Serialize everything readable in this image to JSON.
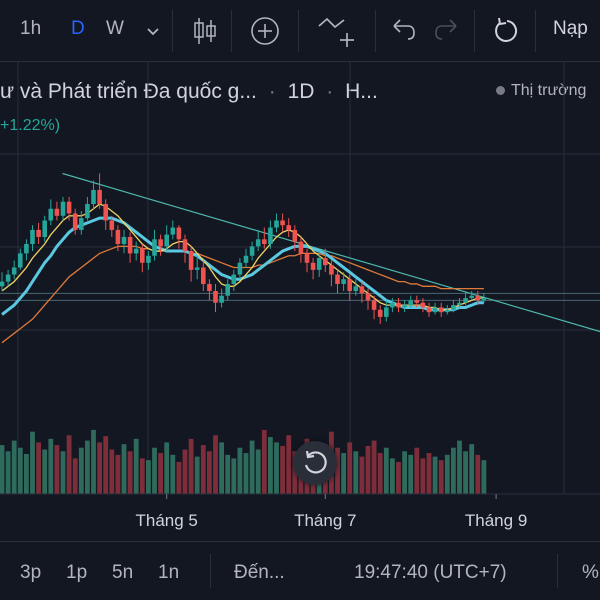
{
  "toolbar": {
    "interval_1h": "1h",
    "interval_d": "D",
    "interval_w": "W",
    "interval_menu_icon": "chevron-down-icon",
    "candle_icon": "candles-icon",
    "add_icon": "plus-circle-icon",
    "indicator_icon": "add-indicator-icon",
    "undo_icon": "undo-icon",
    "redo_icon": "redo-icon",
    "reload_icon": "reload-icon",
    "load_label": "Nạp"
  },
  "legend": {
    "title": "ư và Phát triển Đa quốc g...",
    "interval": "1D",
    "exchange": "H...",
    "separator": "·",
    "change": "+1.22%)",
    "market_status": "Thị trường"
  },
  "bottom_bar": {
    "range_3p": "3p",
    "range_1p": "1p",
    "range_5n": "5n",
    "range_1n": "1n",
    "goto": "Đến...",
    "time": "19:47:40 (UTC+7)",
    "percent": "%"
  },
  "chart_data": {
    "type": "candlestick",
    "x_tick_labels": [
      "Tháng 5",
      "Tháng 7",
      "Tháng 9"
    ],
    "x_tick_index": [
      27,
      53,
      81
    ],
    "y_range": [
      0,
      100
    ],
    "volume_range": [
      0,
      100
    ],
    "colors": {
      "up": "#26a69a",
      "down": "#ef5350",
      "volume_up": "#2e6b5c",
      "volume_down": "#7e2e3a",
      "ma_fast": "#f0d264",
      "ma_mid": "#5ac8e0",
      "ma_slow": "#e07a38",
      "trendline": "#4db6ac",
      "grid": "#2a2e39"
    },
    "candles": [
      [
        42,
        44,
        48,
        40
      ],
      [
        44,
        47,
        49,
        42
      ],
      [
        47,
        50,
        53,
        45
      ],
      [
        50,
        56,
        58,
        49
      ],
      [
        56,
        60,
        62,
        53
      ],
      [
        60,
        66,
        68,
        57
      ],
      [
        66,
        63,
        69,
        60
      ],
      [
        63,
        70,
        72,
        61
      ],
      [
        70,
        75,
        79,
        68
      ],
      [
        75,
        72,
        78,
        70
      ],
      [
        72,
        78,
        80,
        70
      ],
      [
        78,
        73,
        80,
        70
      ],
      [
        73,
        66,
        75,
        64
      ],
      [
        66,
        71,
        74,
        64
      ],
      [
        71,
        77,
        80,
        70
      ],
      [
        77,
        83,
        87,
        75
      ],
      [
        83,
        77,
        90,
        75
      ],
      [
        77,
        70,
        79,
        66
      ],
      [
        70,
        66,
        72,
        63
      ],
      [
        66,
        60,
        68,
        57
      ],
      [
        60,
        63,
        66,
        56
      ],
      [
        63,
        56,
        65,
        52
      ],
      [
        56,
        58,
        61,
        53
      ],
      [
        58,
        52,
        60,
        48
      ],
      [
        52,
        55,
        57,
        49
      ],
      [
        55,
        62,
        66,
        53
      ],
      [
        62,
        59,
        64,
        55
      ],
      [
        59,
        64,
        68,
        57
      ],
      [
        64,
        67,
        70,
        62
      ],
      [
        67,
        62,
        68,
        58
      ],
      [
        62,
        57,
        64,
        52
      ],
      [
        57,
        49,
        59,
        44
      ],
      [
        49,
        50,
        55,
        45
      ],
      [
        50,
        43,
        53,
        40
      ],
      [
        43,
        40,
        45,
        36
      ],
      [
        40,
        35,
        43,
        31
      ],
      [
        35,
        38,
        41,
        33
      ],
      [
        38,
        43,
        45,
        36
      ],
      [
        43,
        47,
        49,
        40
      ],
      [
        47,
        52,
        54,
        45
      ],
      [
        52,
        55,
        58,
        50
      ],
      [
        55,
        59,
        61,
        53
      ],
      [
        59,
        62,
        66,
        57
      ],
      [
        62,
        60,
        67,
        58
      ],
      [
        60,
        67,
        70,
        58
      ],
      [
        67,
        70,
        73,
        65
      ],
      [
        70,
        68,
        73,
        65
      ],
      [
        68,
        66,
        71,
        63
      ],
      [
        66,
        61,
        68,
        57
      ],
      [
        61,
        56,
        63,
        52
      ],
      [
        56,
        52,
        58,
        48
      ],
      [
        52,
        49,
        54,
        45
      ],
      [
        49,
        54,
        57,
        46
      ],
      [
        54,
        51,
        58,
        48
      ],
      [
        51,
        47,
        53,
        42
      ],
      [
        47,
        43,
        49,
        39
      ],
      [
        43,
        45,
        48,
        40
      ],
      [
        45,
        40,
        47,
        36
      ],
      [
        40,
        42,
        45,
        38
      ],
      [
        42,
        39,
        44,
        35
      ],
      [
        39,
        36,
        41,
        32
      ],
      [
        36,
        32,
        38,
        28
      ],
      [
        32,
        29,
        34,
        26
      ],
      [
        29,
        33,
        36,
        27
      ],
      [
        33,
        35,
        37,
        31
      ],
      [
        35,
        33,
        37,
        31
      ],
      [
        33,
        34,
        36,
        31
      ],
      [
        34,
        36,
        38,
        33
      ],
      [
        36,
        35,
        38,
        33
      ],
      [
        35,
        33,
        37,
        31
      ],
      [
        33,
        31,
        35,
        29
      ],
      [
        31,
        33,
        35,
        30
      ],
      [
        33,
        31,
        35,
        29
      ],
      [
        31,
        32,
        34,
        30
      ],
      [
        32,
        34,
        36,
        31
      ],
      [
        34,
        35,
        37,
        33
      ],
      [
        35,
        37,
        40,
        34
      ],
      [
        37,
        38,
        40,
        36
      ],
      [
        38,
        36,
        40,
        34
      ],
      [
        36,
        37,
        39,
        35
      ]
    ],
    "ma_fast": [
      40,
      42,
      44,
      47,
      50,
      54,
      57,
      60,
      64,
      67,
      70,
      72,
      72,
      72,
      73,
      75,
      77,
      76,
      74,
      72,
      69,
      66,
      63,
      60,
      58,
      57,
      57,
      58,
      60,
      61,
      61,
      59,
      56,
      53,
      50,
      46,
      43,
      42,
      42,
      44,
      47,
      50,
      54,
      57,
      60,
      63,
      65,
      66,
      65,
      63,
      60,
      57,
      55,
      53,
      51,
      49,
      47,
      45,
      43,
      41,
      39,
      37,
      35,
      34,
      34,
      34,
      34,
      34,
      34,
      34,
      33,
      33,
      32,
      32,
      33,
      34,
      35,
      36,
      37,
      37
    ],
    "ma_mid": [
      30,
      32,
      34,
      37,
      40,
      44,
      48,
      52,
      55,
      59,
      62,
      65,
      67,
      68,
      69,
      70,
      71,
      71,
      71,
      70,
      69,
      67,
      65,
      63,
      61,
      59,
      58,
      57,
      57,
      57,
      57,
      56,
      55,
      53,
      51,
      49,
      47,
      46,
      45,
      45,
      46,
      47,
      49,
      51,
      53,
      55,
      57,
      58,
      59,
      59,
      59,
      58,
      57,
      56,
      54,
      52,
      50,
      48,
      46,
      44,
      42,
      40,
      38,
      36,
      35,
      34,
      33,
      33,
      33,
      33,
      32,
      32,
      32,
      32,
      32,
      33,
      33,
      34,
      35,
      35
    ],
    "ma_slow": [
      18,
      20,
      22,
      24,
      26,
      28,
      31,
      34,
      37,
      40,
      43,
      46,
      48,
      50,
      52,
      54,
      56,
      57,
      58,
      59,
      59,
      59,
      59,
      58,
      58,
      57,
      57,
      57,
      57,
      57,
      57,
      56,
      56,
      55,
      54,
      53,
      52,
      51,
      50,
      50,
      50,
      50,
      51,
      51,
      52,
      53,
      54,
      55,
      55,
      56,
      56,
      56,
      56,
      55,
      55,
      54,
      53,
      52,
      51,
      50,
      49,
      48,
      47,
      46,
      45,
      44,
      44,
      43,
      43,
      42,
      42,
      42,
      41,
      41,
      41,
      41,
      41,
      41,
      41,
      41
    ],
    "trendline": {
      "start": [
        -4,
        90
      ],
      "end": [
        94,
        27
      ]
    },
    "support_lines": [
      39,
      36
    ],
    "volume": [
      55,
      48,
      60,
      52,
      45,
      70,
      58,
      50,
      62,
      55,
      48,
      66,
      40,
      52,
      60,
      72,
      58,
      65,
      50,
      44,
      56,
      48,
      62,
      40,
      38,
      52,
      46,
      58,
      44,
      36,
      50,
      62,
      42,
      55,
      48,
      66,
      58,
      44,
      40,
      52,
      46,
      60,
      50,
      72,
      64,
      58,
      54,
      66,
      48,
      52,
      62,
      44,
      40,
      56,
      70,
      52,
      46,
      58,
      48,
      42,
      54,
      60,
      46,
      52,
      40,
      36,
      48,
      44,
      52,
      40,
      46,
      42,
      38,
      44,
      52,
      60,
      48,
      56,
      44,
      38
    ]
  }
}
